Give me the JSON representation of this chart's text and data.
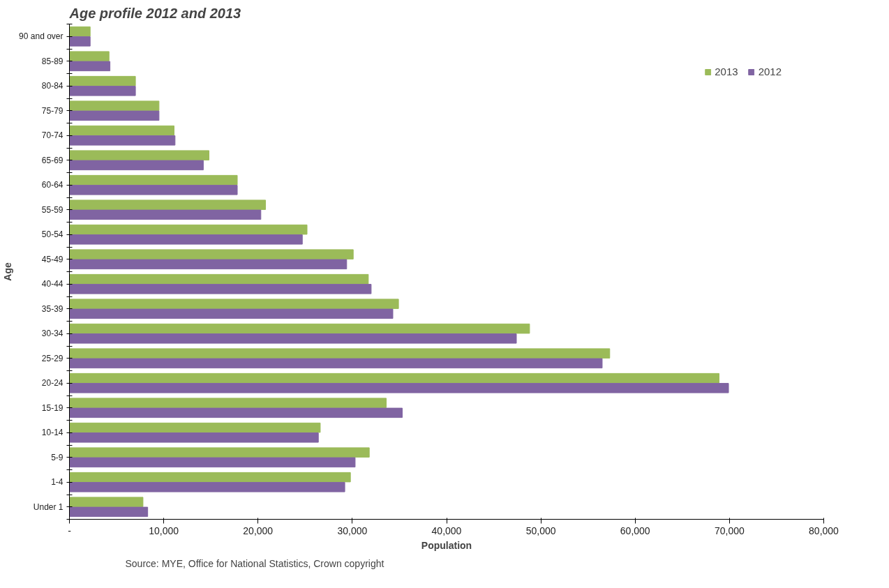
{
  "chart_data": {
    "type": "bar",
    "orientation": "horizontal",
    "title": "Age profile 2012 and 2013",
    "xlabel": "Population",
    "ylabel": "Age",
    "categories": [
      "90 and over",
      "85-89",
      "80-84",
      "75-79",
      "70-74",
      "65-69",
      "60-64",
      "55-59",
      "50-54",
      "45-49",
      "40-44",
      "35-39",
      "30-34",
      "25-29",
      "20-24",
      "15-19",
      "10-14",
      "5-9",
      "1-4",
      "Under 1"
    ],
    "series": [
      {
        "name": "2013",
        "color": "#9bbb59",
        "values": [
          2200,
          4200,
          7000,
          9500,
          11100,
          14800,
          17800,
          20800,
          25200,
          30100,
          31700,
          34900,
          48800,
          57300,
          68900,
          33600,
          26600,
          31800,
          29800,
          7800
        ]
      },
      {
        "name": "2012",
        "color": "#8064a2",
        "values": [
          2200,
          4300,
          7000,
          9500,
          11200,
          14200,
          17800,
          20300,
          24700,
          29400,
          32000,
          34300,
          47400,
          56500,
          69900,
          35300,
          26400,
          30300,
          29200,
          8300
        ]
      }
    ],
    "xlim": [
      0,
      80000
    ],
    "xticks": [
      {
        "value": 0,
        "label": "-"
      },
      {
        "value": 10000,
        "label": "10,000"
      },
      {
        "value": 20000,
        "label": "20,000"
      },
      {
        "value": 30000,
        "label": "30,000"
      },
      {
        "value": 40000,
        "label": "40,000"
      },
      {
        "value": 50000,
        "label": "50,000"
      },
      {
        "value": 60000,
        "label": "60,000"
      },
      {
        "value": 70000,
        "label": "70,000"
      },
      {
        "value": 80000,
        "label": "80,000"
      }
    ],
    "grid": false,
    "legend": "top right",
    "annotations": [
      "Source:  MYE, Office for National Statistics, Crown copyright"
    ]
  }
}
